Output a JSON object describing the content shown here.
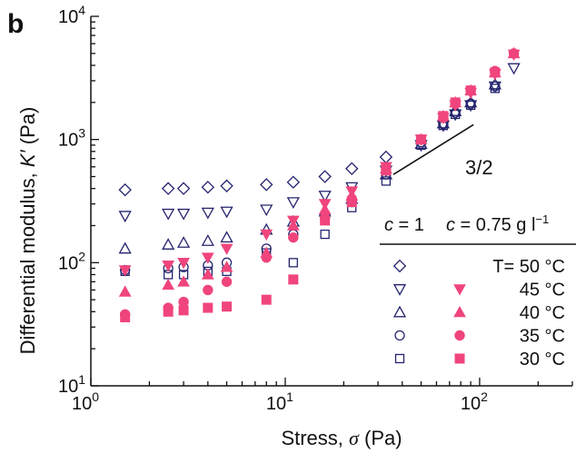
{
  "panel_label": "b",
  "colors": {
    "open": "#24246e",
    "filled": "#f0457c",
    "axis": "#111111"
  },
  "chart_data": {
    "type": "scatter",
    "x_scale": "log",
    "y_scale": "log",
    "xlim": [
      1,
      300
    ],
    "ylim": [
      10,
      10000
    ],
    "xlabel_main": "Stress, ",
    "xlabel_symbol": "σ",
    "xlabel_unit": " (Pa)",
    "ylabel_main": "Differential modulus, ",
    "ylabel_symbol": "K′",
    "ylabel_unit": " (Pa)",
    "x_ticks": [
      {
        "value": 1,
        "base": "10",
        "exp": "0"
      },
      {
        "value": 10,
        "base": "10",
        "exp": "1"
      },
      {
        "value": 100,
        "base": "10",
        "exp": "2"
      }
    ],
    "y_ticks": [
      {
        "value": 10,
        "base": "10",
        "exp": "1"
      },
      {
        "value": 100,
        "base": "10",
        "exp": "2"
      },
      {
        "value": 1000,
        "base": "10",
        "exp": "3"
      },
      {
        "value": 10000,
        "base": "10",
        "exp": "4"
      }
    ],
    "slope_annotation": {
      "label": "3/2",
      "x1": 36,
      "y1": 520,
      "x2": 93,
      "y2": 1320
    },
    "legend": {
      "header_left": "c = 1",
      "header_right": "c = 0.75 g l⁻¹",
      "rows": [
        {
          "open_marker": "diamond",
          "filled_marker": "",
          "label": "T= 50 °C"
        },
        {
          "open_marker": "triangle-down",
          "filled_marker": "triangle-down",
          "label": "45 °C"
        },
        {
          "open_marker": "triangle-up",
          "filled_marker": "triangle-up",
          "label": "40 °C"
        },
        {
          "open_marker": "circle",
          "filled_marker": "circle",
          "label": "35 °C"
        },
        {
          "open_marker": "square",
          "filled_marker": "square",
          "label": "30 °C"
        }
      ]
    },
    "series": [
      {
        "name": "c = 1, T= 50 °C",
        "marker": "diamond",
        "filled": false,
        "x": [
          1.5,
          2.5,
          3,
          4,
          5,
          8,
          11,
          16,
          22,
          33
        ],
        "y": [
          390,
          400,
          400,
          410,
          420,
          430,
          450,
          500,
          580,
          720
        ]
      },
      {
        "name": "c = 1, 45 °C",
        "marker": "triangle-down",
        "filled": false,
        "x": [
          1.5,
          2.5,
          3,
          4,
          5,
          8,
          11,
          16,
          22,
          33,
          50,
          65,
          75,
          90,
          120,
          150
        ],
        "y": [
          240,
          250,
          250,
          255,
          260,
          270,
          310,
          350,
          410,
          560,
          900,
          1300,
          1600,
          1900,
          2700,
          3800
        ]
      },
      {
        "name": "c = 1, 40 °C",
        "marker": "triangle-up",
        "filled": false,
        "x": [
          1.5,
          2.5,
          3,
          4,
          5,
          8,
          11,
          16,
          22,
          33,
          50,
          65,
          75,
          90,
          120
        ],
        "y": [
          130,
          140,
          145,
          150,
          160,
          185,
          215,
          260,
          330,
          520,
          920,
          1350,
          1700,
          2000,
          2800
        ]
      },
      {
        "name": "c = 1, 35 °C",
        "marker": "circle",
        "filled": false,
        "x": [
          1.5,
          2.5,
          3,
          4,
          5,
          8,
          11,
          16,
          22,
          33,
          50,
          65,
          75,
          90,
          120
        ],
        "y": [
          87,
          90,
          92,
          95,
          100,
          130,
          170,
          230,
          310,
          520,
          950,
          1330,
          1650,
          1950,
          2700
        ]
      },
      {
        "name": "c = 1, 30 °C",
        "marker": "square",
        "filled": false,
        "x": [
          1.5,
          2.5,
          3,
          4,
          5,
          8,
          11,
          16,
          22,
          33,
          50,
          65,
          75,
          90,
          120
        ],
        "y": [
          85,
          80,
          80,
          85,
          85,
          120,
          100,
          170,
          280,
          460,
          900,
          1300,
          1600,
          1900,
          2600
        ]
      },
      {
        "name": "c = 0.75, 45 °C",
        "marker": "triangle-down",
        "filled": true,
        "x": [
          1.5,
          2.5,
          3,
          4,
          5,
          8,
          11,
          16,
          22,
          33,
          50,
          65,
          75,
          90,
          120,
          150
        ],
        "y": [
          87,
          95,
          100,
          110,
          130,
          170,
          220,
          300,
          380,
          600,
          1000,
          1500,
          1900,
          2400,
          3400,
          4900
        ]
      },
      {
        "name": "c = 0.75, 40 °C",
        "marker": "triangle-up",
        "filled": true,
        "x": [
          1.5,
          2.5,
          3,
          4,
          5,
          8,
          11,
          16,
          22,
          33,
          50,
          65,
          75,
          90,
          120,
          150
        ],
        "y": [
          58,
          66,
          70,
          80,
          92,
          120,
          200,
          270,
          350,
          580,
          1000,
          1550,
          2000,
          2500,
          3500,
          5000
        ]
      },
      {
        "name": "c = 0.75, 35 °C",
        "marker": "circle",
        "filled": true,
        "x": [
          1.5,
          2.5,
          3,
          4,
          5,
          8,
          11,
          16,
          22,
          33,
          50,
          65,
          75,
          90,
          120,
          150
        ],
        "y": [
          38,
          43,
          48,
          60,
          70,
          110,
          160,
          230,
          330,
          570,
          1000,
          1500,
          1950,
          2500,
          3600,
          5000
        ]
      },
      {
        "name": "c = 0.75, 30 °C",
        "marker": "square",
        "filled": true,
        "x": [
          1.5,
          2.5,
          3,
          4,
          5,
          8,
          11,
          16,
          22,
          33,
          50,
          65,
          75,
          90,
          120
        ],
        "y": [
          36,
          40,
          41,
          43,
          44,
          50,
          73,
          220,
          310,
          560,
          1000,
          1550,
          2000,
          2500,
          3500
        ]
      }
    ]
  }
}
